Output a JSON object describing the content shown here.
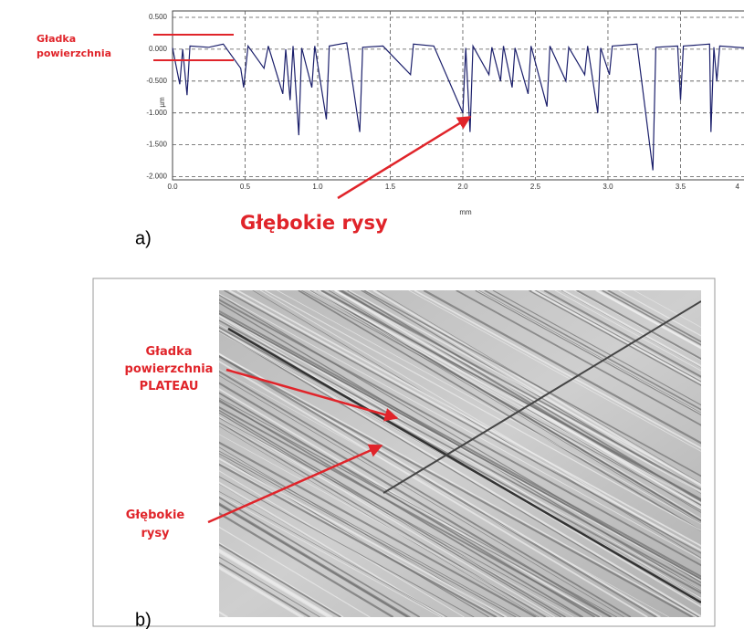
{
  "chart_data": {
    "type": "line",
    "x": [
      0.0,
      0.05,
      0.07,
      0.1,
      0.12,
      0.25,
      0.35,
      0.47,
      0.49,
      0.52,
      0.63,
      0.66,
      0.76,
      0.78,
      0.81,
      0.83,
      0.87,
      0.89,
      0.96,
      0.98,
      1.06,
      1.08,
      1.2,
      1.29,
      1.31,
      1.45,
      1.64,
      1.66,
      1.8,
      2.0,
      2.02,
      2.05,
      2.07,
      2.18,
      2.2,
      2.26,
      2.28,
      2.34,
      2.36,
      2.45,
      2.47,
      2.58,
      2.6,
      2.71,
      2.73,
      2.84,
      2.86,
      2.93,
      2.95,
      3.01,
      3.03,
      3.2,
      3.31,
      3.33,
      3.48,
      3.5,
      3.52,
      3.7,
      3.71,
      3.73,
      3.75,
      3.77,
      3.95
    ],
    "series": [
      {
        "color": "#1b1f6b",
        "values": [
          0.02,
          -0.55,
          0.0,
          -0.72,
          0.05,
          0.03,
          0.08,
          -0.3,
          -0.6,
          0.05,
          -0.3,
          0.05,
          -0.7,
          0.0,
          -0.8,
          0.05,
          -1.35,
          0.02,
          -0.6,
          0.05,
          -1.1,
          0.05,
          0.1,
          -1.3,
          0.03,
          0.05,
          -0.4,
          0.08,
          0.05,
          -1.0,
          0.02,
          -1.3,
          0.05,
          -0.4,
          0.03,
          -0.5,
          0.05,
          -0.6,
          0.02,
          -0.7,
          0.05,
          -0.9,
          0.05,
          -0.5,
          0.03,
          -0.4,
          0.05,
          -1.0,
          0.02,
          -0.4,
          0.05,
          0.08,
          -1.9,
          0.03,
          0.05,
          -0.8,
          0.05,
          0.08,
          -1.3,
          0.03,
          -0.5,
          0.05,
          0.02
        ]
      }
    ],
    "xlim": [
      0,
      3.95
    ],
    "ylim": [
      -2.05,
      0.6
    ],
    "xticks": [
      {
        "value": 0,
        "label": "0.0"
      },
      0.5,
      {
        "value": 1,
        "label": "1.0"
      },
      1.5,
      {
        "value": 2,
        "label": "2.0"
      },
      2.5,
      {
        "value": 3,
        "label": "3.0"
      },
      3.5,
      4
    ],
    "yticks": [
      {
        "value": 0.5,
        "label": "0.500"
      },
      {
        "value": 0,
        "label": "0.000"
      },
      {
        "value": -0.5,
        "label": "-0.500"
      },
      {
        "value": -1,
        "label": "-1.000"
      },
      {
        "value": -1.5,
        "label": "-1.500"
      },
      {
        "value": -2,
        "label": "-2.000"
      }
    ],
    "xlabel": "mm",
    "ylabel": "µm",
    "grid": true,
    "annotations": [
      {
        "lines": [
          "Gładka",
          "powierzchnia"
        ]
      },
      {
        "text": "Głębokie rysy"
      }
    ]
  },
  "panels": [
    "a)",
    "b)"
  ],
  "image_labels": {
    "plateau": [
      "Gładka",
      "powierzchnia",
      "PLATEAU"
    ],
    "scratches": [
      "Głębokie",
      "rysy"
    ]
  }
}
